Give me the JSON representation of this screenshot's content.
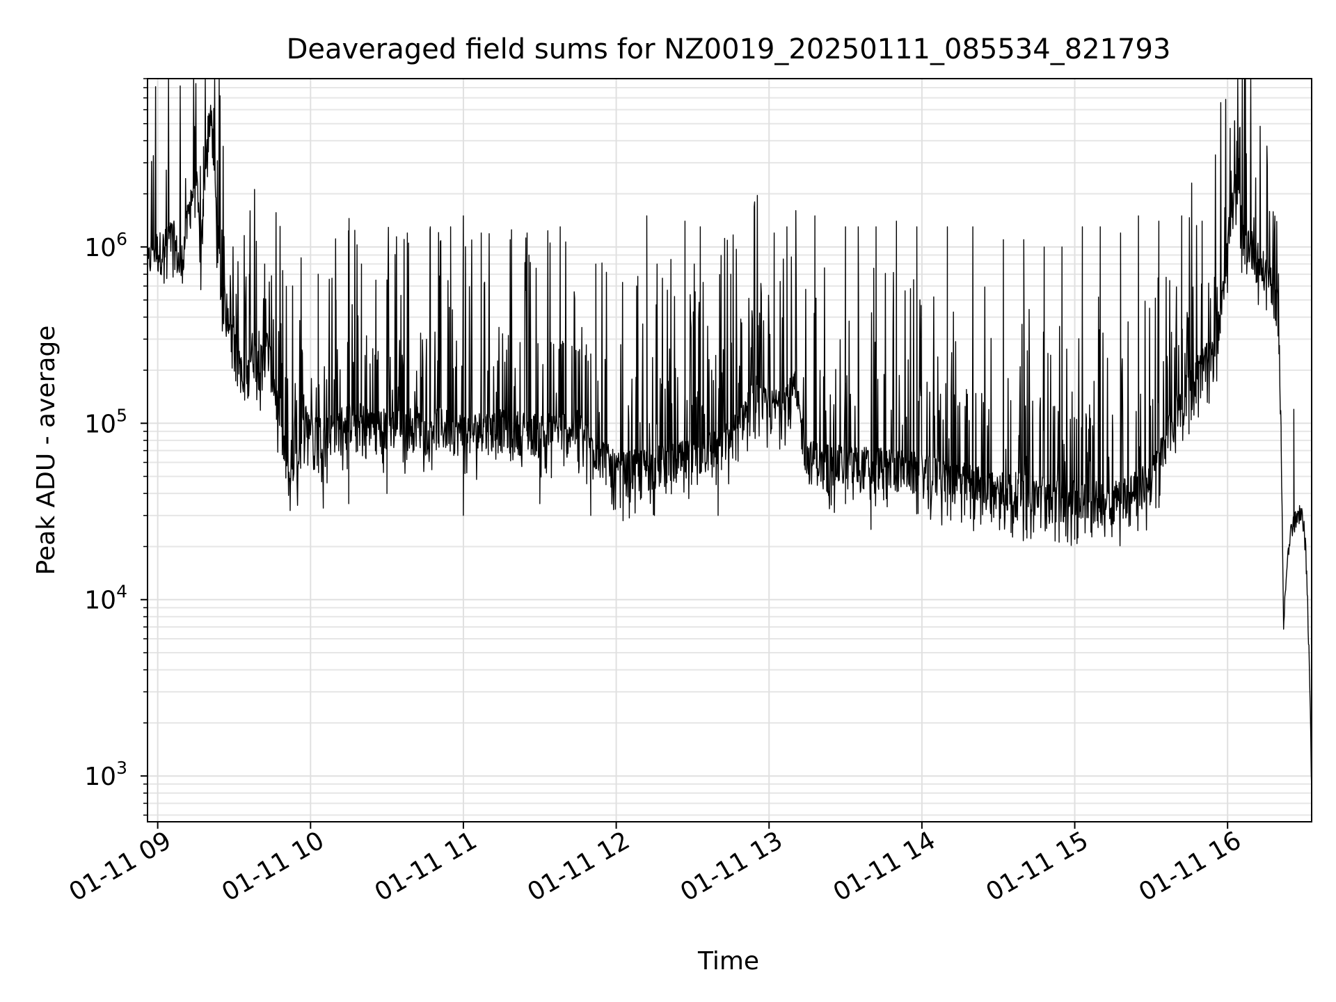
{
  "chart_data": {
    "type": "line",
    "title": "Deaveraged field sums for NZ0019_20250111_085534_821793",
    "xlabel": "Time",
    "ylabel": "Peak ADU - average",
    "y_scale": "log",
    "xlim": [
      "2025-01-11 08:56",
      "2025-01-11 16:33"
    ],
    "ylim": [
      550,
      9000000
    ],
    "grid": true,
    "x_ticks": [
      {
        "time": "2025-01-11 09:00",
        "label": "01-11 09"
      },
      {
        "time": "2025-01-11 10:00",
        "label": "01-11 10"
      },
      {
        "time": "2025-01-11 11:00",
        "label": "01-11 11"
      },
      {
        "time": "2025-01-11 12:00",
        "label": "01-11 12"
      },
      {
        "time": "2025-01-11 13:00",
        "label": "01-11 13"
      },
      {
        "time": "2025-01-11 14:00",
        "label": "01-11 14"
      },
      {
        "time": "2025-01-11 15:00",
        "label": "01-11 15"
      },
      {
        "time": "2025-01-11 16:00",
        "label": "01-11 16"
      }
    ],
    "y_ticks": [
      {
        "value": 1000,
        "base": "10",
        "exp": "3"
      },
      {
        "value": 10000,
        "base": "10",
        "exp": "4"
      },
      {
        "value": 100000,
        "base": "10",
        "exp": "5"
      },
      {
        "value": 1000000,
        "base": "10",
        "exp": "6"
      }
    ],
    "series": [
      {
        "color": "#000000",
        "points": [
          [
            "2025-01-11 08:56",
            700000
          ],
          [
            "2025-01-11 08:58",
            1000000
          ],
          [
            "2025-01-11 09:00",
            900000
          ],
          [
            "2025-01-11 09:03",
            950000
          ],
          [
            "2025-01-11 09:06",
            1100000
          ],
          [
            "2025-01-11 09:09",
            700000
          ],
          [
            "2025-01-11 09:12",
            1400000
          ],
          [
            "2025-01-11 09:15",
            2500000
          ],
          [
            "2025-01-11 09:17",
            800000
          ],
          [
            "2025-01-11 09:19",
            3500000
          ],
          [
            "2025-01-11 09:21",
            6000000
          ],
          [
            "2025-01-11 09:23",
            1500000
          ],
          [
            "2025-01-11 09:25",
            500000
          ],
          [
            "2025-01-11 09:28",
            400000
          ],
          [
            "2025-01-11 09:31",
            300000
          ],
          [
            "2025-01-11 09:34",
            130000
          ],
          [
            "2025-01-11 09:37",
            250000
          ],
          [
            "2025-01-11 09:40",
            200000
          ],
          [
            "2025-01-11 09:43",
            260000
          ],
          [
            "2025-01-11 09:46",
            150000
          ],
          [
            "2025-01-11 09:49",
            70000
          ],
          [
            "2025-01-11 09:52",
            45000
          ],
          [
            "2025-01-11 09:55",
            60000
          ],
          [
            "2025-01-11 09:58",
            100000
          ],
          [
            "2025-01-11 10:05",
            80000
          ],
          [
            "2025-01-11 10:15",
            100000
          ],
          [
            "2025-01-11 10:30",
            90000
          ],
          [
            "2025-01-11 10:45",
            95000
          ],
          [
            "2025-01-11 11:00",
            85000
          ],
          [
            "2025-01-11 11:15",
            90000
          ],
          [
            "2025-01-11 11:30",
            85000
          ],
          [
            "2025-01-11 11:45",
            90000
          ],
          [
            "2025-01-11 12:00",
            50000
          ],
          [
            "2025-01-11 12:15",
            55000
          ],
          [
            "2025-01-11 12:30",
            60000
          ],
          [
            "2025-01-11 12:45",
            80000
          ],
          [
            "2025-01-11 12:55",
            140000
          ],
          [
            "2025-01-11 13:00",
            110000
          ],
          [
            "2025-01-11 13:10",
            150000
          ],
          [
            "2025-01-11 13:15",
            60000
          ],
          [
            "2025-01-11 13:30",
            55000
          ],
          [
            "2025-01-11 13:45",
            55000
          ],
          [
            "2025-01-11 14:00",
            50000
          ],
          [
            "2025-01-11 14:15",
            45000
          ],
          [
            "2025-01-11 14:30",
            40000
          ],
          [
            "2025-01-11 14:45",
            38000
          ],
          [
            "2025-01-11 15:00",
            35000
          ],
          [
            "2025-01-11 15:15",
            35000
          ],
          [
            "2025-01-11 15:30",
            45000
          ],
          [
            "2025-01-11 15:35",
            70000
          ],
          [
            "2025-01-11 15:40",
            110000
          ],
          [
            "2025-01-11 15:45",
            160000
          ],
          [
            "2025-01-11 15:50",
            200000
          ],
          [
            "2025-01-11 15:55",
            230000
          ],
          [
            "2025-01-11 16:00",
            1000000
          ],
          [
            "2025-01-11 16:03",
            2000000
          ],
          [
            "2025-01-11 16:06",
            1200000
          ],
          [
            "2025-01-11 16:10",
            900000
          ],
          [
            "2025-01-11 16:14",
            700000
          ],
          [
            "2025-01-11 16:18",
            600000
          ],
          [
            "2025-01-11 16:20",
            400000
          ],
          [
            "2025-01-11 16:21",
            80000
          ],
          [
            "2025-01-11 16:22",
            7000
          ],
          [
            "2025-01-11 16:23",
            15000
          ],
          [
            "2025-01-11 16:25",
            25000
          ],
          [
            "2025-01-11 16:28",
            30000
          ],
          [
            "2025-01-11 16:30",
            28000
          ],
          [
            "2025-01-11 16:31",
            15000
          ],
          [
            "2025-01-11 16:32",
            5000
          ],
          [
            "2025-01-11 16:33",
            800
          ]
        ],
        "peaks": [
          [
            "2025-01-11 09:04",
            1300000
          ],
          [
            "2025-01-11 09:13",
            2100000
          ],
          [
            "2025-01-11 09:18",
            3700000
          ],
          [
            "2025-01-11 09:20",
            5000000
          ],
          [
            "2025-01-11 09:22",
            6100000
          ],
          [
            "2025-01-11 09:36",
            700000
          ],
          [
            "2025-01-11 09:42",
            800000
          ],
          [
            "2025-01-11 10:03",
            700000
          ],
          [
            "2025-01-11 10:10",
            500000
          ],
          [
            "2025-01-11 10:20",
            800000
          ],
          [
            "2025-01-11 10:30",
            650000
          ],
          [
            "2025-01-11 10:38",
            1200000
          ],
          [
            "2025-01-11 10:47",
            1300000
          ],
          [
            "2025-01-11 10:55",
            1300000
          ],
          [
            "2025-01-11 11:00",
            1500000
          ],
          [
            "2025-01-11 11:07",
            1200000
          ],
          [
            "2025-01-11 11:25",
            1200000
          ],
          [
            "2025-01-11 11:38",
            1300000
          ],
          [
            "2025-01-11 11:52",
            800000
          ],
          [
            "2025-01-11 12:08",
            600000
          ],
          [
            "2025-01-11 12:12",
            1500000
          ],
          [
            "2025-01-11 12:27",
            1400000
          ],
          [
            "2025-01-11 12:33",
            1300000
          ],
          [
            "2025-01-11 12:45",
            700000
          ],
          [
            "2025-01-11 13:02",
            1200000
          ],
          [
            "2025-01-11 13:07",
            1300000
          ],
          [
            "2025-01-11 13:18",
            1500000
          ],
          [
            "2025-01-11 13:30",
            1300000
          ],
          [
            "2025-01-11 13:35",
            1300000
          ],
          [
            "2025-01-11 13:42",
            1300000
          ],
          [
            "2025-01-11 13:50",
            1400000
          ],
          [
            "2025-01-11 13:58",
            1300000
          ],
          [
            "2025-01-11 14:10",
            1300000
          ],
          [
            "2025-01-11 14:20",
            1300000
          ],
          [
            "2025-01-11 14:32",
            1100000
          ],
          [
            "2025-01-11 14:40",
            1100000
          ],
          [
            "2025-01-11 14:48",
            1000000
          ],
          [
            "2025-01-11 14:55",
            1000000
          ],
          [
            "2025-01-11 15:03",
            1300000
          ],
          [
            "2025-01-11 15:10",
            1300000
          ],
          [
            "2025-01-11 15:18",
            1200000
          ],
          [
            "2025-01-11 15:25",
            1500000
          ],
          [
            "2025-01-11 15:33",
            1400000
          ],
          [
            "2025-01-11 15:42",
            1500000
          ],
          [
            "2025-01-11 15:50",
            1400000
          ],
          [
            "2025-01-11 16:01",
            4700000
          ],
          [
            "2025-01-11 16:21",
            95000
          ],
          [
            "2025-01-11 16:26",
            120000
          ]
        ],
        "troughs": [
          [
            "2025-01-11 09:52",
            32000
          ],
          [
            "2025-01-11 10:05",
            33000
          ],
          [
            "2025-01-11 10:15",
            35000
          ],
          [
            "2025-01-11 10:30",
            40000
          ],
          [
            "2025-01-11 11:00",
            30000
          ],
          [
            "2025-01-11 11:30",
            35000
          ],
          [
            "2025-01-11 11:50",
            30000
          ],
          [
            "2025-01-11 12:15",
            30000
          ],
          [
            "2025-01-11 12:40",
            30000
          ],
          [
            "2025-01-11 13:30",
            35000
          ],
          [
            "2025-01-11 13:40",
            25000
          ],
          [
            "2025-01-11 14:10",
            30000
          ],
          [
            "2025-01-11 14:35",
            24000
          ],
          [
            "2025-01-11 14:50",
            27000
          ],
          [
            "2025-01-11 15:00",
            22000
          ],
          [
            "2025-01-11 15:15",
            27000
          ],
          [
            "2025-01-11 16:22",
            6800
          ]
        ]
      }
    ]
  }
}
